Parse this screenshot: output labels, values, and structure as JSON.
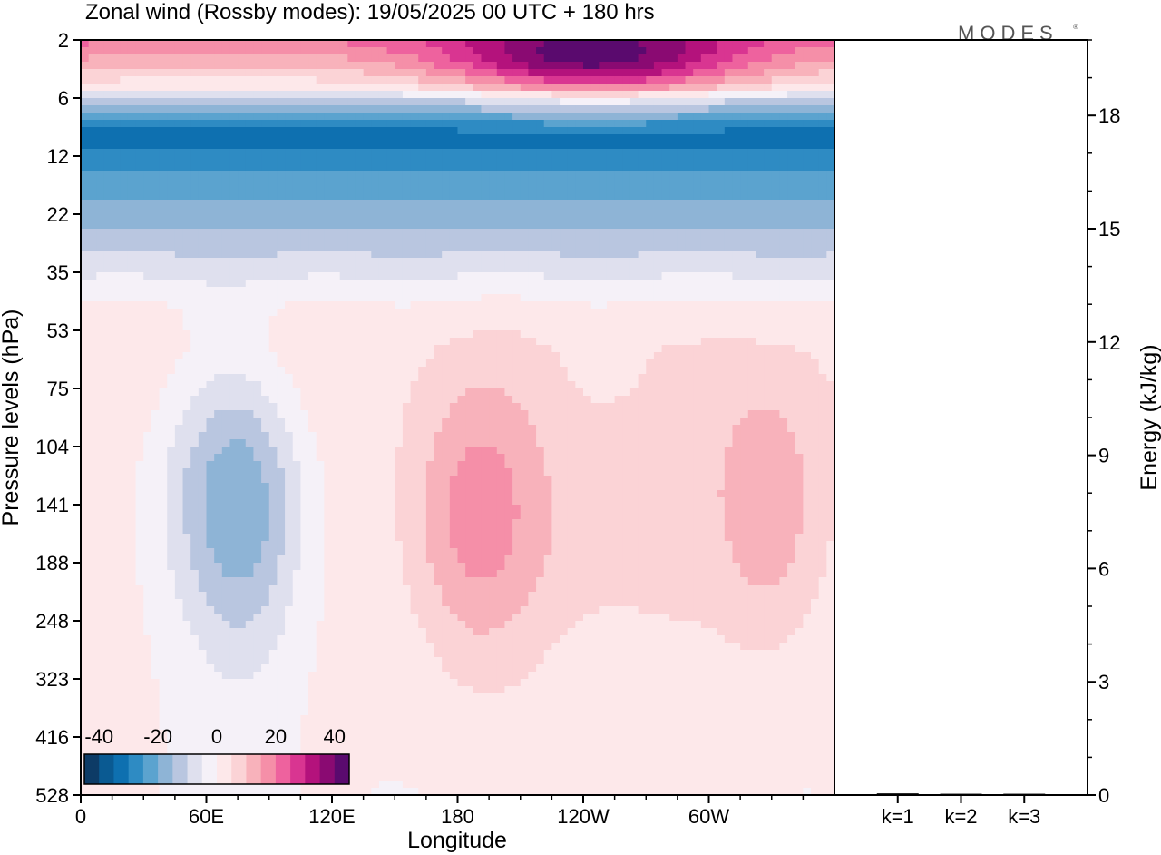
{
  "title": "Zonal wind (Rossby modes):  19/05/2025  00 UTC  + 180 hrs",
  "watermark": "MODES",
  "watermark_mark": "®",
  "colors": {
    "frame": "#000000",
    "palette": [
      "#0d3b66",
      "#0a5a92",
      "#0e70b0",
      "#2e8bc3",
      "#5ba3cf",
      "#8eb4d6",
      "#b9c6e0",
      "#dfe0ee",
      "#f5f1f8",
      "#fde8ea",
      "#fbd3d6",
      "#f8b2bb",
      "#f58fa8",
      "#ee629e",
      "#d93591",
      "#b4127c",
      "#8a0a72",
      "#5a0a6e"
    ]
  },
  "chart_data": [
    {
      "type": "heatmap",
      "title": "Zonal wind (Rossby modes):  19/05/2025  00 UTC  + 180 hrs",
      "xlabel": "Longitude",
      "ylabel": "Pressure levels (hPa)",
      "x_ticks": [
        "0",
        "60E",
        "120E",
        "180",
        "120W",
        "60W"
      ],
      "x_tick_degrees": [
        0,
        60,
        120,
        180,
        240,
        300
      ],
      "xlim": [
        0,
        360
      ],
      "y_ticks": [
        "2",
        "6",
        "12",
        "22",
        "35",
        "53",
        "75",
        "104",
        "141",
        "188",
        "248",
        "323",
        "416",
        "528"
      ],
      "y_scale": "log, reversed (pressure levels)",
      "ylim": [
        528,
        2
      ],
      "colorbar": {
        "ticks": [
          "-40",
          "-20",
          "0",
          "20",
          "40"
        ],
        "tick_values": [
          -40,
          -20,
          0,
          20,
          40
        ],
        "range": [
          -45,
          45
        ],
        "step": 5,
        "placement": "bottom-left inside plot"
      },
      "level_profile": [
        {
          "p": 2,
          "u": 20
        },
        {
          "p": 3,
          "u": 12
        },
        {
          "p": 4,
          "u": 6
        },
        {
          "p": 5,
          "u": 0
        },
        {
          "p": 6,
          "u": -12
        },
        {
          "p": 8,
          "u": -28
        },
        {
          "p": 10,
          "u": -35
        },
        {
          "p": 12,
          "u": -28
        },
        {
          "p": 16,
          "u": -22
        },
        {
          "p": 22,
          "u": -18
        },
        {
          "p": 28,
          "u": -12
        },
        {
          "p": 35,
          "u": -6
        },
        {
          "p": 45,
          "u": 1
        },
        {
          "p": 60,
          "u": 4
        },
        {
          "p": 80,
          "u": 4
        },
        {
          "p": 120,
          "u": 3
        },
        {
          "p": 200,
          "u": 2
        },
        {
          "p": 300,
          "u": 1
        },
        {
          "p": 528,
          "u": 0
        }
      ],
      "features": [
        {
          "lon": 70,
          "p": 130,
          "width_deg": 40,
          "u": -14
        },
        {
          "lon": 80,
          "p": 160,
          "width_deg": 25,
          "u": -8
        },
        {
          "lon": 185,
          "p": 150,
          "width_deg": 30,
          "u": 12
        },
        {
          "lon": 240,
          "p": 160,
          "width_deg": 60,
          "u": 6
        },
        {
          "lon": 330,
          "p": 140,
          "width_deg": 25,
          "u": 12
        },
        {
          "lon": 245,
          "p": 3,
          "width_deg": 70,
          "u": 30
        }
      ]
    },
    {
      "type": "bar",
      "ylabel": "Energy (kJ/kg)",
      "categories": [
        "k=1",
        "k=2",
        "k=3"
      ],
      "values": [
        0.02,
        0.01,
        0.01
      ],
      "y_ticks": [
        "0",
        "3",
        "6",
        "9",
        "12",
        "15",
        "18"
      ],
      "y_tick_values": [
        0,
        3,
        6,
        9,
        12,
        15,
        18
      ],
      "ylim": [
        0,
        20
      ]
    }
  ]
}
